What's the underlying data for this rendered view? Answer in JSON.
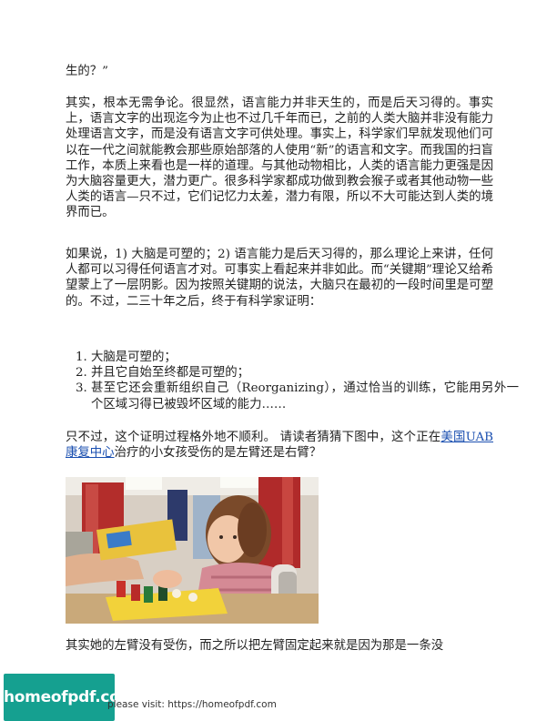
{
  "paragraphs": {
    "p1": "生的？”",
    "p2": "其实，根本无需争论。很显然，语言能力并非天生的，而是后天习得的。事实上，语言文字的出现迄今为止也不过几千年而已，之前的人类大脑并非没有能力处理语言文字，而是没有语言文字可供处理。事实上，科学家们早就发现他们可以在一代之间就能教会那些原始部落的人使用“新”的语言和文字。而我国的扫盲工作，本质上来看也是一样的道理。与其他动物相比，人类的语言能力更强是因为大脑容量更大，潜力更广。很多科学家都成功做到教会猴子或者其他动物一些人类的语言—只不过，它们记忆力太差，潜力有限，所以不大可能达到人类的境界而已。",
    "p3": "如果说，1)  大脑是可塑的；2)  语言能力是后天习得的，那么理论上来讲，任何人都可以习得任何语言才对。可事实上看起来并非如此。而“关键期”理论又给希望蒙上了一层阴影。因为按照关键期的说法，大脑只在最初的一段时间里是可塑的。不过，二三十年之后，终于有科学家证明：",
    "p4_before": "只不过，这个证明过程格外地不顺利。    请读者猜猜下图中，这个正在",
    "p4_link": "美国UAB康复中心",
    "p4_after": "治疗的小女孩受伤的是左臂还是右臂？",
    "p5": "其实她的左臂没有受伤，而之所以把左臂固定起来就是因为那是一条没"
  },
  "list": [
    "大脑是可塑的；",
    "并且它自始至终都是可塑的；",
    "甚至它还会重新组织自己（Reorganizing），通过恰当的训练，它能用另外一个区域习得已被毁坏区域的能力……"
  ],
  "footer": {
    "logo": "homeofpdf.com",
    "text": "please visit: https://homeofpdf.com"
  },
  "colors": {
    "link": "#1a4fb0",
    "logo_bg": "#15a090"
  }
}
